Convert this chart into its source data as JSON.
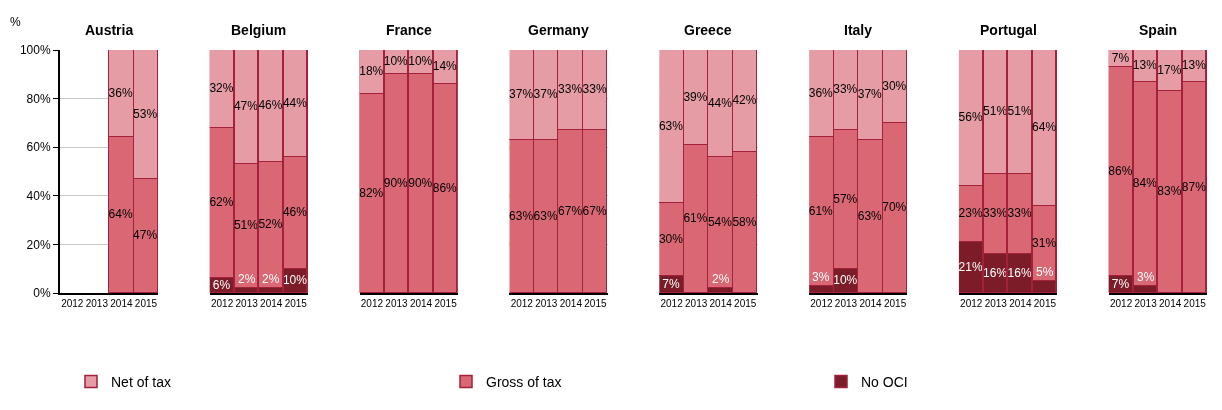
{
  "chart_data": [
    {
      "type": "bar",
      "stacked": true,
      "title": "Austria",
      "ylabel": "%",
      "categories": [
        "2012",
        "2013",
        "2014",
        "2015"
      ],
      "ylim": [
        0,
        100
      ],
      "yticks": [
        {
          "value": 0,
          "label": "0%"
        },
        {
          "value": 20,
          "label": "20%"
        },
        {
          "value": 40,
          "label": "40%"
        },
        {
          "value": 60,
          "label": "60%"
        },
        {
          "value": 80,
          "label": "80%"
        },
        {
          "value": 100,
          "label": "100%"
        }
      ],
      "grid": "y",
      "legend": "bottom",
      "series": [
        {
          "name": "No OCI",
          "color": "#7b1c28",
          "values": [
            null,
            null,
            null,
            null
          ],
          "value_labels": [
            null,
            null,
            null,
            null
          ]
        },
        {
          "name": "Gross of tax",
          "color": "#d96874",
          "values": [
            null,
            null,
            64,
            47
          ],
          "value_labels": [
            null,
            null,
            "64%",
            "47%"
          ]
        },
        {
          "name": "Net of tax",
          "color": "#e59ca5",
          "values": [
            null,
            null,
            36,
            53
          ],
          "value_labels": [
            null,
            null,
            "36%",
            "53%"
          ]
        }
      ]
    },
    {
      "type": "bar",
      "stacked": true,
      "title": "Belgium",
      "categories": [
        "2012",
        "2013",
        "2014",
        "2015"
      ],
      "ylim": [
        0,
        100
      ],
      "grid": "y",
      "tick_labels": "x",
      "series": [
        {
          "color": "#7b1c28",
          "values": [
            6,
            2,
            2,
            10
          ],
          "value_labels": [
            "6%",
            "2%",
            "2%",
            "10%"
          ]
        },
        {
          "color": "#d96874",
          "values": [
            62,
            51,
            52,
            46
          ],
          "value_labels": [
            "62%",
            "51%",
            "52%",
            "46%"
          ]
        },
        {
          "color": "#e59ca5",
          "values": [
            32,
            47,
            46,
            44
          ],
          "value_labels": [
            "32%",
            "47%",
            "46%",
            "44%"
          ]
        }
      ]
    },
    {
      "type": "bar",
      "stacked": true,
      "title": "France",
      "categories": [
        "2012",
        "2013",
        "2014",
        "2015"
      ],
      "ylim": [
        0,
        100
      ],
      "grid": "y",
      "tick_labels": "x",
      "series": [
        {
          "color": "#7b1c28",
          "values": [
            null,
            null,
            null,
            null
          ],
          "value_labels": [
            null,
            null,
            null,
            null
          ]
        },
        {
          "color": "#d96874",
          "values": [
            82,
            90,
            90,
            86
          ],
          "value_labels": [
            "82%",
            "90%",
            "90%",
            "86%"
          ]
        },
        {
          "color": "#e59ca5",
          "values": [
            18,
            10,
            10,
            14
          ],
          "value_labels": [
            "18%",
            "10%",
            "10%",
            "14%"
          ]
        }
      ]
    },
    {
      "type": "bar",
      "stacked": true,
      "title": "Germany",
      "categories": [
        "2012",
        "2013",
        "2014",
        "2015"
      ],
      "ylim": [
        0,
        100
      ],
      "grid": "y",
      "tick_labels": "x",
      "series": [
        {
          "color": "#7b1c28",
          "values": [
            null,
            null,
            null,
            null
          ],
          "value_labels": [
            null,
            null,
            null,
            null
          ]
        },
        {
          "color": "#d96874",
          "values": [
            63,
            63,
            67,
            67
          ],
          "value_labels": [
            "63%",
            "63%",
            "67%",
            "67%"
          ]
        },
        {
          "color": "#e59ca5",
          "values": [
            37,
            37,
            33,
            33
          ],
          "value_labels": [
            "37%",
            "37%",
            "33%",
            "33%"
          ]
        }
      ]
    },
    {
      "type": "bar",
      "stacked": true,
      "title": "Greece",
      "categories": [
        "2012",
        "2013",
        "2014",
        "2015"
      ],
      "ylim": [
        0,
        100
      ],
      "grid": "y",
      "tick_labels": "x",
      "series": [
        {
          "color": "#7b1c28",
          "values": [
            7,
            null,
            2,
            null
          ],
          "value_labels": [
            "7%",
            null,
            "2%",
            null
          ]
        },
        {
          "color": "#d96874",
          "values": [
            30,
            61,
            54,
            58
          ],
          "value_labels": [
            "30%",
            "61%",
            "54%",
            "58%"
          ]
        },
        {
          "color": "#e59ca5",
          "values": [
            63,
            39,
            44,
            42
          ],
          "value_labels": [
            "63%",
            "39%",
            "44%",
            "42%"
          ]
        }
      ]
    },
    {
      "type": "bar",
      "stacked": true,
      "title": "Italy",
      "categories": [
        "2012",
        "2013",
        "2014",
        "2015"
      ],
      "ylim": [
        0,
        100
      ],
      "grid": "y",
      "tick_labels": "x",
      "series": [
        {
          "color": "#7b1c28",
          "values": [
            3,
            10,
            null,
            null
          ],
          "value_labels": [
            "3%",
            "10%",
            null,
            null
          ]
        },
        {
          "color": "#d96874",
          "values": [
            61,
            57,
            63,
            70
          ],
          "value_labels": [
            "61%",
            "57%",
            "63%",
            "70%"
          ]
        },
        {
          "color": "#e59ca5",
          "values": [
            36,
            33,
            37,
            30
          ],
          "value_labels": [
            "36%",
            "33%",
            "37%",
            "30%"
          ]
        }
      ]
    },
    {
      "type": "bar",
      "stacked": true,
      "title": "Portugal",
      "categories": [
        "2012",
        "2013",
        "2014",
        "2015"
      ],
      "ylim": [
        0,
        100
      ],
      "grid": "y",
      "tick_labels": "x",
      "series": [
        {
          "color": "#7b1c28",
          "values": [
            21,
            16,
            16,
            5
          ],
          "value_labels": [
            "21%",
            "16%",
            "16%",
            "5%"
          ]
        },
        {
          "color": "#d96874",
          "values": [
            23,
            33,
            33,
            31
          ],
          "value_labels": [
            "23%",
            "33%",
            "33%",
            "31%"
          ]
        },
        {
          "color": "#e59ca5",
          "values": [
            56,
            51,
            51,
            64
          ],
          "value_labels": [
            "56%",
            "51%",
            "51%",
            "64%"
          ]
        }
      ]
    },
    {
      "type": "bar",
      "stacked": true,
      "title": "Spain",
      "categories": [
        "2012",
        "2013",
        "2014",
        "2015"
      ],
      "ylim": [
        0,
        100
      ],
      "grid": "y",
      "tick_labels": "x",
      "series": [
        {
          "color": "#7b1c28",
          "values": [
            7,
            3,
            null,
            null
          ],
          "value_labels": [
            "7%",
            "3%",
            null,
            null
          ]
        },
        {
          "color": "#d96874",
          "values": [
            86,
            84,
            83,
            87
          ],
          "value_labels": [
            "86%",
            "84%",
            "83%",
            "87%"
          ]
        },
        {
          "color": "#e59ca5",
          "values": [
            7,
            13,
            17,
            13
          ],
          "value_labels": [
            "7%",
            "13%",
            "17%",
            "13%"
          ]
        }
      ]
    }
  ]
}
